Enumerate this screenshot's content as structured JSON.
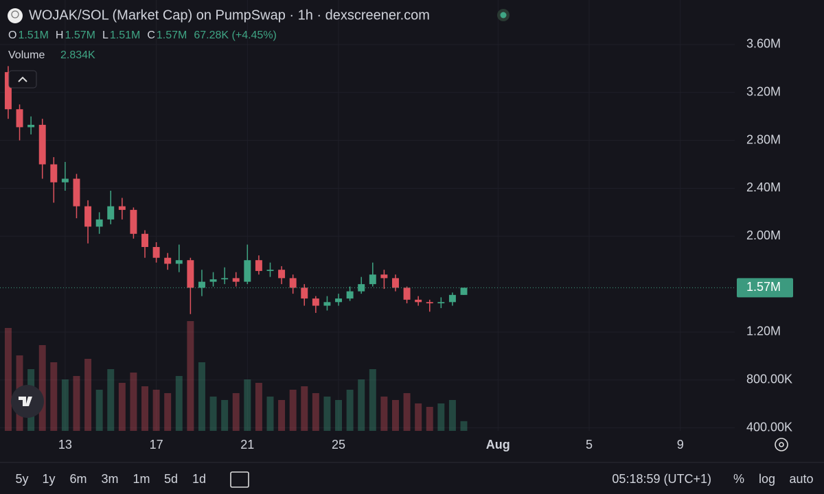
{
  "header": {
    "title": "WOJAK/SOL (Market Cap) on PumpSwap · 1h · dexscreener.com",
    "ohlc": [
      {
        "key": "O",
        "value": "1.51M"
      },
      {
        "key": "H",
        "value": "1.57M"
      },
      {
        "key": "L",
        "value": "1.51M"
      },
      {
        "key": "C",
        "value": "1.57M"
      }
    ],
    "change": "67.28K (+4.45%)",
    "volume_label": "Volume",
    "volume_value": "2.834K"
  },
  "chart_data": {
    "type": "candlestick",
    "up_color": "#3fa584",
    "down_color": "#e0535e",
    "grid": true,
    "log_scale": false,
    "x": [
      10.5,
      11,
      11.5,
      12,
      12.5,
      13,
      13.5,
      14,
      14.5,
      15,
      15.5,
      16,
      16.5,
      17,
      17.5,
      18,
      18.5,
      19,
      19.5,
      20,
      20.5,
      21,
      21.5,
      22,
      22.5,
      23,
      23.5,
      24,
      24.5,
      25,
      25.5,
      26,
      26.5,
      27,
      27.5,
      28,
      28.5,
      29,
      29.5,
      30,
      30.5
    ],
    "open": [
      3370000,
      3060000,
      2910000,
      2930000,
      2600000,
      2450000,
      2480000,
      2250000,
      2080000,
      2140000,
      2250000,
      2220000,
      2020000,
      1910000,
      1820000,
      1770000,
      1800000,
      1570000,
      1620000,
      1640000,
      1650000,
      1620000,
      1800000,
      1710000,
      1720000,
      1650000,
      1570000,
      1480000,
      1420000,
      1450000,
      1480000,
      1540000,
      1600000,
      1680000,
      1650000,
      1570000,
      1470000,
      1450000,
      1440000,
      1450000,
      1510000
    ],
    "high": [
      3420000,
      3100000,
      3000000,
      2980000,
      2660000,
      2620000,
      2520000,
      2300000,
      2200000,
      2380000,
      2320000,
      2240000,
      2050000,
      1950000,
      1860000,
      1930000,
      1820000,
      1720000,
      1700000,
      1740000,
      1700000,
      1930000,
      1840000,
      1780000,
      1750000,
      1680000,
      1600000,
      1500000,
      1500000,
      1520000,
      1580000,
      1660000,
      1780000,
      1720000,
      1680000,
      1580000,
      1500000,
      1470000,
      1490000,
      1530000,
      1570000
    ],
    "low": [
      2980000,
      2800000,
      2850000,
      2480000,
      2280000,
      2380000,
      2150000,
      1940000,
      2020000,
      2100000,
      2140000,
      1980000,
      1820000,
      1780000,
      1720000,
      1700000,
      1350000,
      1500000,
      1580000,
      1600000,
      1580000,
      1600000,
      1680000,
      1660000,
      1600000,
      1520000,
      1420000,
      1360000,
      1380000,
      1420000,
      1460000,
      1520000,
      1580000,
      1560000,
      1540000,
      1440000,
      1420000,
      1370000,
      1400000,
      1420000,
      1510000
    ],
    "close": [
      3060000,
      2910000,
      2930000,
      2600000,
      2450000,
      2480000,
      2250000,
      2080000,
      2140000,
      2250000,
      2220000,
      2020000,
      1910000,
      1820000,
      1770000,
      1800000,
      1570000,
      1620000,
      1640000,
      1650000,
      1620000,
      1800000,
      1710000,
      1720000,
      1650000,
      1570000,
      1480000,
      1420000,
      1450000,
      1480000,
      1540000,
      1600000,
      1680000,
      1650000,
      1570000,
      1470000,
      1450000,
      1440000,
      1450000,
      1510000,
      1570000
    ],
    "volume": [
      30000,
      22000,
      18000,
      25000,
      20000,
      15000,
      16000,
      21000,
      12000,
      18000,
      14000,
      17000,
      13000,
      12000,
      11000,
      16000,
      32000,
      20000,
      10000,
      9000,
      11000,
      15000,
      14000,
      10000,
      9000,
      12000,
      13000,
      11000,
      10000,
      9000,
      12000,
      15000,
      18000,
      10000,
      9000,
      11000,
      8000,
      7000,
      8000,
      9000,
      2834
    ],
    "last_price_label": "1.57M",
    "xlim": [
      10.14,
      42.39
    ],
    "xticks": [
      13,
      17,
      21,
      25,
      {
        "value": 32,
        "label": "Aug"
      },
      {
        "value": 36,
        "label": "5"
      },
      {
        "value": 40,
        "label": "9"
      }
    ],
    "ylim": [
      375000,
      3972000
    ],
    "yticks": [
      {
        "value": 3600000,
        "label": "3.60M"
      },
      {
        "value": 3200000,
        "label": "3.20M"
      },
      {
        "value": 2800000,
        "label": "2.80M"
      },
      {
        "value": 2400000,
        "label": "2.40M"
      },
      {
        "value": 2000000,
        "label": "2.00M"
      },
      {
        "value": 1200000,
        "label": "1.20M"
      },
      {
        "value": 800000,
        "label": "800.00K"
      },
      {
        "value": 400000,
        "label": "400.00K"
      }
    ]
  },
  "toolbar": {
    "ranges": [
      "5y",
      "1y",
      "6m",
      "3m",
      "1m",
      "5d",
      "1d"
    ],
    "clock": "05:18:59 (UTC+1)",
    "options": [
      "%",
      "log",
      "auto"
    ]
  }
}
